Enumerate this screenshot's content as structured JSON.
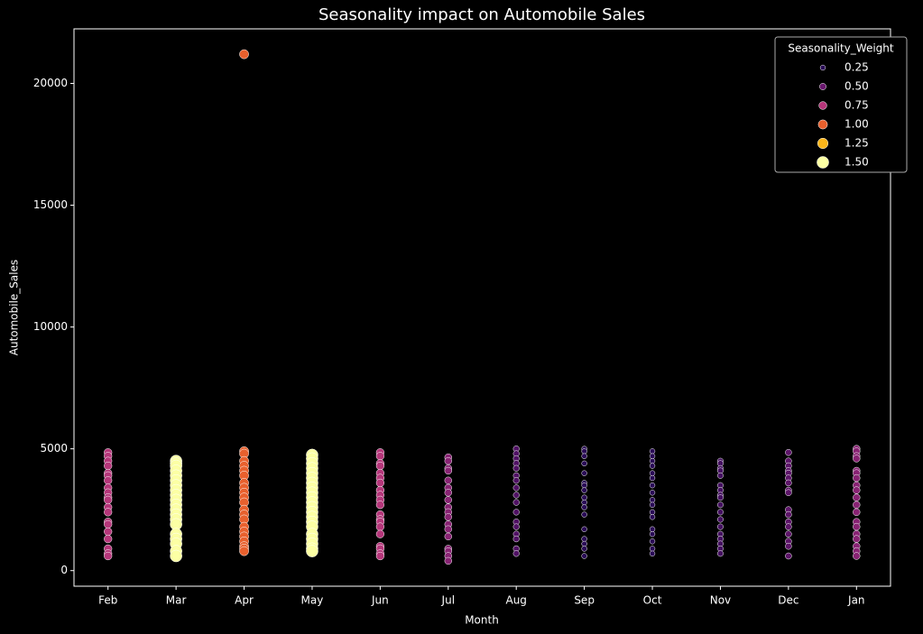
{
  "chart_data": {
    "type": "scatter",
    "title": "Seasonality impact on Automobile Sales",
    "x_label": "Month",
    "y_label": "Automobile_Sales",
    "categories": [
      "Feb",
      "Mar",
      "Apr",
      "May",
      "Jun",
      "Jul",
      "Aug",
      "Sep",
      "Oct",
      "Nov",
      "Dec",
      "Jan"
    ],
    "weights": [
      0.75,
      1.5,
      1.0,
      1.5,
      0.75,
      0.6,
      0.4,
      0.25,
      0.25,
      0.35,
      0.45,
      0.6
    ],
    "values": [
      [
        4850,
        4700,
        4500,
        4300,
        4000,
        3900,
        3700,
        3400,
        3200,
        3000,
        2900,
        2600,
        2400,
        2000,
        1900,
        1600,
        1300,
        900,
        700,
        600
      ],
      [
        4500,
        4400,
        4300,
        4100,
        3900,
        3700,
        3500,
        3300,
        3100,
        2900,
        2700,
        2500,
        2300,
        2100,
        1900,
        1500,
        1300,
        1100,
        800,
        600
      ],
      [
        21200,
        4900,
        4800,
        4500,
        4300,
        4100,
        3900,
        3600,
        3400,
        3200,
        3000,
        2800,
        2500,
        2300,
        2100,
        1800,
        1600,
        1400,
        1200,
        1000,
        900,
        800
      ],
      [
        4750,
        4600,
        4400,
        4200,
        4000,
        3800,
        3600,
        3400,
        3200,
        3000,
        2800,
        2600,
        2400,
        2200,
        2000,
        1800,
        1500,
        1300,
        1100,
        900,
        800
      ],
      [
        4850,
        4700,
        4400,
        4300,
        4000,
        3800,
        3600,
        3300,
        3100,
        2900,
        2700,
        2300,
        2100,
        2000,
        1800,
        1500,
        1000,
        900,
        700,
        600
      ],
      [
        4650,
        4500,
        4200,
        4100,
        3700,
        3400,
        3200,
        2900,
        2600,
        2400,
        2200,
        1900,
        1700,
        1400,
        900,
        800,
        600,
        400
      ],
      [
        5000,
        4800,
        4600,
        4400,
        4200,
        3900,
        3700,
        3400,
        3100,
        2800,
        2400,
        2000,
        1800,
        1500,
        1300,
        900,
        700
      ],
      [
        5000,
        4900,
        4700,
        4400,
        4000,
        3600,
        3500,
        3300,
        3000,
        2800,
        2600,
        2300,
        1700,
        1300,
        1100,
        900,
        600
      ],
      [
        4900,
        4700,
        4500,
        4300,
        4000,
        3800,
        3500,
        3200,
        2900,
        2700,
        2400,
        2200,
        1700,
        1500,
        1200,
        900,
        700
      ],
      [
        4500,
        4400,
        4200,
        4100,
        3900,
        3500,
        3300,
        3100,
        3000,
        2700,
        2400,
        2100,
        1800,
        1500,
        1300,
        1100,
        900,
        700
      ],
      [
        4850,
        4500,
        4300,
        4100,
        4000,
        3800,
        3600,
        3300,
        3200,
        2500,
        2300,
        2000,
        1800,
        1500,
        1200,
        1000,
        600
      ],
      [
        5000,
        4900,
        4700,
        4600,
        4100,
        4000,
        3800,
        3500,
        3300,
        3000,
        2700,
        2400,
        2000,
        1800,
        1500,
        1300,
        1000,
        800,
        600
      ]
    ],
    "ylim": [
      -640,
      22240
    ],
    "yticks": [
      0,
      5000,
      10000,
      15000,
      20000
    ],
    "legend": {
      "title": "Seasonality_Weight",
      "position": "upper right",
      "levels": [
        0.25,
        {
          "value": 0.5,
          "label": "0.50"
        },
        0.75,
        {
          "value": 1.0,
          "label": "1.00"
        },
        1.25,
        {
          "value": 1.5,
          "label": "1.50"
        }
      ],
      "colors": [
        "#2a0b56",
        "#6a176e",
        "#b5367a",
        "#e8602d",
        "#fbb61a",
        "#fcffa4"
      ]
    }
  }
}
